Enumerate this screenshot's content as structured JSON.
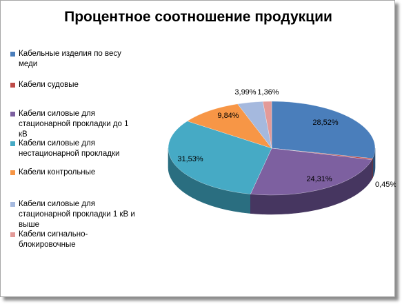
{
  "chart_data": {
    "type": "pie",
    "title": "Процентное соотношение продукции",
    "legend_position": "left",
    "categories": [
      "Кабельные изделия по весу меди",
      "Кабели судовые",
      "Кабели силовые для стационарной прокладки до 1 кВ",
      "Кабели силовые для нестационарной прокладки",
      "Кабели контрольные",
      "Кабели силовые для стационарной прокладки 1 кВ и выше",
      "Кабели сигнально-блокировочные"
    ],
    "values": [
      28.52,
      0.45,
      24.31,
      31.53,
      9.84,
      3.99,
      1.36
    ],
    "data_labels": [
      "28,52%",
      "0,45%",
      "24,31%",
      "31,53%",
      "9,84%",
      "3,99%",
      "1,36%"
    ],
    "colors": [
      "#4a7ebb",
      "#be4b48",
      "#7d60a0",
      "#46aac5",
      "#f79646",
      "#a5b9de",
      "#e39a98"
    ],
    "side_colors": [
      "#2c4d74",
      "#7a2c2a",
      "#463660",
      "#2a6e80",
      "#b35c1c",
      "#6f82a4",
      "#a86664"
    ]
  }
}
